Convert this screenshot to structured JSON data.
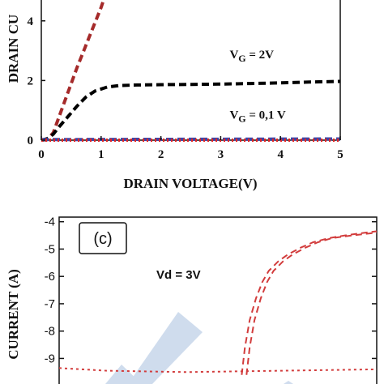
{
  "chart_data": [
    {
      "type": "line",
      "xlabel": "DRAIN VOLTAGE(V)",
      "ylabel": "DRAIN CU",
      "xlim": [
        0,
        5
      ],
      "ylim": [
        0,
        4.7
      ],
      "x_ticks": [
        "0",
        "1",
        "2",
        "3",
        "4",
        "5"
      ],
      "y_ticks": [
        "0",
        "2",
        "4"
      ],
      "annotations": [
        {
          "prefix": "V",
          "sub": "G",
          "suffix": " = 2V",
          "x": 3.8,
          "y": 2.75
        },
        {
          "prefix": "V",
          "sub": "G",
          "suffix": " = 0,1 V",
          "x": 3.8,
          "y": 0.72
        }
      ],
      "series": [
        {
          "color": "#a52a2a",
          "dash": "dashed",
          "x": [
            0,
            0.1,
            0.2,
            0.3,
            0.4,
            0.5,
            0.6,
            0.7,
            0.8,
            0.9,
            1.0,
            1.05
          ],
          "y": [
            0,
            0.02,
            0.25,
            0.8,
            1.35,
            1.9,
            2.45,
            2.95,
            3.45,
            3.95,
            4.45,
            4.75
          ]
        },
        {
          "color": "#000000",
          "dash": "dashed",
          "x": [
            0,
            0.1,
            0.2,
            0.3,
            0.45,
            0.6,
            0.75,
            0.9,
            1.1,
            1.3,
            1.6,
            2.0,
            2.5,
            3.0,
            3.5,
            4.0,
            4.5,
            5.0
          ],
          "y": [
            0,
            0.05,
            0.2,
            0.45,
            0.8,
            1.15,
            1.45,
            1.65,
            1.78,
            1.83,
            1.85,
            1.86,
            1.87,
            1.88,
            1.9,
            1.92,
            1.95,
            1.97
          ]
        },
        {
          "color": "#3c46a8",
          "dash": "dashed",
          "x": [
            0,
            5.0
          ],
          "y": [
            0.02,
            0.04
          ]
        },
        {
          "color": "#e02424",
          "dash": "dotted",
          "x": [
            0,
            5.0
          ],
          "y": [
            0.0,
            0.0
          ]
        }
      ]
    },
    {
      "type": "line",
      "xlabel": "",
      "ylabel": "CURRENT (A)",
      "xlim": [
        0,
        1
      ],
      "ylim": [
        -9.6,
        -3.9
      ],
      "y_ticks": [
        "-4",
        "-5",
        "-6",
        "-7",
        "-8",
        "-9"
      ],
      "panel_label": "(c)",
      "annotation": "Vd = 3V",
      "series": [
        {
          "color": "#d23c3c",
          "dash": "dashed",
          "x": [
            0.575,
            0.585,
            0.6,
            0.62,
            0.64,
            0.66,
            0.69,
            0.72,
            0.76,
            0.8,
            0.85,
            0.9,
            0.95,
            1.0
          ],
          "y": [
            -9.6,
            -8.6,
            -7.6,
            -6.8,
            -6.2,
            -5.8,
            -5.45,
            -5.2,
            -4.95,
            -4.75,
            -4.6,
            -4.5,
            -4.42,
            -4.35
          ]
        },
        {
          "color": "#d23c3c",
          "dash": "dashed",
          "x": [
            0.59,
            0.6,
            0.615,
            0.635,
            0.655,
            0.675,
            0.705,
            0.735,
            0.775,
            0.815,
            0.86,
            0.91,
            0.96,
            1.0
          ],
          "y": [
            -9.6,
            -8.6,
            -7.6,
            -6.8,
            -6.2,
            -5.8,
            -5.45,
            -5.2,
            -4.95,
            -4.75,
            -4.6,
            -4.52,
            -4.45,
            -4.4
          ]
        },
        {
          "color": "#d23c3c",
          "dash": "dotted",
          "x": [
            0.0,
            0.15,
            0.4,
            0.7,
            1.0
          ],
          "y": [
            -9.35,
            -9.45,
            -9.5,
            -9.45,
            -9.4
          ]
        }
      ]
    }
  ]
}
